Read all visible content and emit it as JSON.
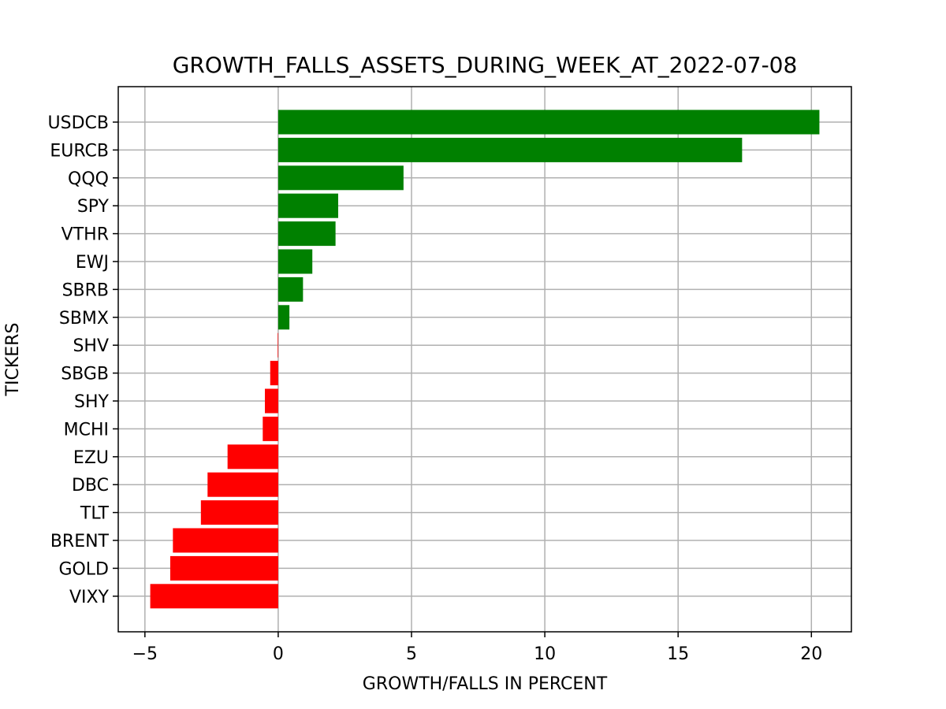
{
  "chart_data": {
    "type": "bar",
    "orientation": "horizontal",
    "title": "GROWTH_FALLS_ASSETS_DURING_WEEK_AT_2022-07-08",
    "xlabel": "GROWTH/FALLS IN PERCENT",
    "ylabel": "TICKERS",
    "categories": [
      "USDCB",
      "EURCB",
      "QQQ",
      "SPY",
      "VTHR",
      "EWJ",
      "SBRB",
      "SBMX",
      "SHV",
      "SBGB",
      "SHY",
      "MCHI",
      "EZU",
      "DBC",
      "TLT",
      "BRENT",
      "GOLD",
      "VIXY"
    ],
    "values": [
      20.3,
      17.4,
      4.7,
      2.25,
      2.15,
      1.28,
      0.93,
      0.42,
      -0.02,
      -0.3,
      -0.5,
      -0.58,
      -1.9,
      -2.65,
      -2.9,
      -3.95,
      -4.05,
      -4.8
    ],
    "xticks": [
      -5,
      0,
      5,
      10,
      15,
      20
    ],
    "xtick_labels": [
      "−5",
      "0",
      "5",
      "10",
      "15",
      "20"
    ],
    "xlim": [
      -6.0,
      21.5
    ],
    "grid": true,
    "colors": {
      "positive": "#008000",
      "negative": "#ff0000",
      "grid": "#b0b0b0",
      "axes": "#000000"
    }
  }
}
